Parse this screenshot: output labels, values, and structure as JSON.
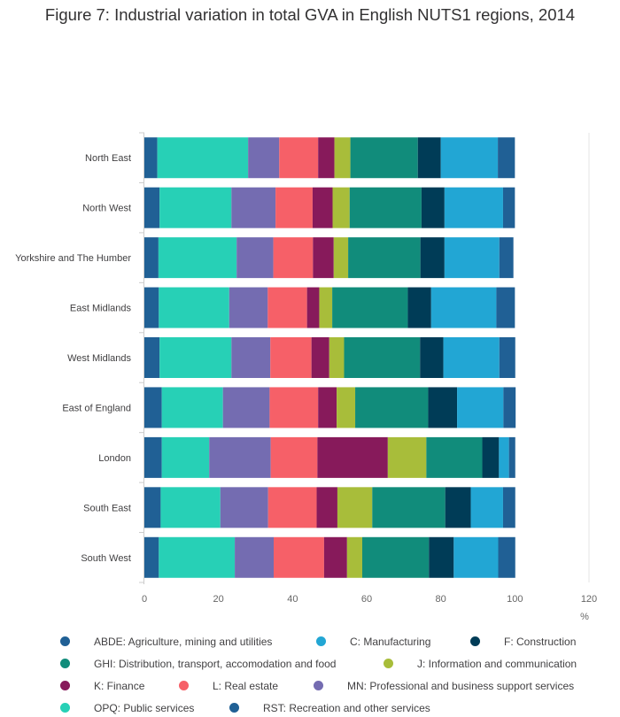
{
  "title": "Figure 7: Industrial variation in total GVA in English NUTS1 regions, 2014",
  "chart_data": {
    "type": "bar",
    "orientation": "horizontal",
    "stacked": true,
    "xlabel": "%",
    "xlim": [
      0,
      120
    ],
    "xticks": [
      0,
      20,
      40,
      60,
      80,
      100,
      120
    ],
    "categories": [
      "North East",
      "North West",
      "Yorkshire and The Humber",
      "East Midlands",
      "West Midlands",
      "East of England",
      "London",
      "South East",
      "South West"
    ],
    "series": [
      {
        "name": "ABDE: Agriculture, mining and utilities",
        "color": "#206095",
        "values": [
          3.5,
          4.1,
          3.8,
          3.9,
          4.1,
          4.7,
          4.7,
          4.4,
          3.9
        ]
      },
      {
        "name": "OPQ: Public services",
        "color": "#27d0b6",
        "values": [
          24.5,
          19.4,
          21.1,
          19.0,
          19.4,
          16.5,
          12.8,
          16.1,
          20.5
        ]
      },
      {
        "name": "MN: Professional and business support services",
        "color": "#746cb1",
        "values": [
          8.4,
          11.9,
          9.9,
          10.4,
          10.5,
          12.6,
          16.6,
          12.9,
          10.5
        ]
      },
      {
        "name": "L: Real estate",
        "color": "#f66068",
        "values": [
          10.5,
          10.0,
          10.7,
          10.6,
          11.1,
          13.1,
          12.6,
          13.1,
          13.6
        ]
      },
      {
        "name": "K: Finance",
        "color": "#871a5b",
        "values": [
          4.4,
          5.4,
          5.6,
          3.3,
          4.8,
          5.0,
          19.0,
          5.6,
          6.2
        ]
      },
      {
        "name": "J: Information and communication",
        "color": "#a8bd3a",
        "values": [
          4.3,
          4.6,
          3.9,
          3.5,
          4.0,
          5.0,
          10.4,
          9.4,
          4.1
        ]
      },
      {
        "name": "GHI: Distribution, transport, accomodation and food",
        "color": "#118c7b",
        "values": [
          18.2,
          19.4,
          19.5,
          20.4,
          20.5,
          19.7,
          15.1,
          19.7,
          18.0
        ]
      },
      {
        "name": "F: Construction",
        "color": "#003c57",
        "values": [
          6.2,
          6.2,
          6.5,
          6.3,
          6.3,
          7.8,
          4.5,
          6.9,
          6.7
        ]
      },
      {
        "name": "C: Manufacturing",
        "color": "#22a6d4",
        "values": [
          15.4,
          15.8,
          14.8,
          17.6,
          15.1,
          12.5,
          2.7,
          8.7,
          12.0
        ]
      },
      {
        "name": "RST: Recreation and other services",
        "color": "#206095",
        "values": [
          4.6,
          3.2,
          3.8,
          5.0,
          4.3,
          3.3,
          1.7,
          3.3,
          4.6
        ]
      }
    ],
    "legend_placement": "bottom",
    "grid": true
  },
  "legend": [
    {
      "label": "ABDE: Agriculture, mining and utilities",
      "color": "#206095"
    },
    {
      "label": "C: Manufacturing",
      "color": "#22a6d4"
    },
    {
      "label": "F: Construction",
      "color": "#003c57"
    },
    {
      "label": "GHI: Distribution, transport, accomodation and food",
      "color": "#118c7b"
    },
    {
      "label": "J: Information and communication",
      "color": "#a8bd3a"
    },
    {
      "label": "K: Finance",
      "color": "#871a5b"
    },
    {
      "label": "L: Real estate",
      "color": "#f66068"
    },
    {
      "label": "MN: Professional and business support services",
      "color": "#746cb1"
    },
    {
      "label": "OPQ: Public services",
      "color": "#27d0b6"
    },
    {
      "label": "RST: Recreation and other services",
      "color": "#206095"
    }
  ]
}
